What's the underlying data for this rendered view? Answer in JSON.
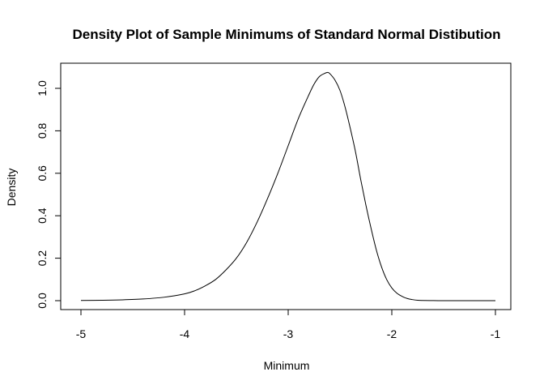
{
  "chart_data": {
    "type": "line",
    "title": "Density Plot of Sample Minimums of Standard Normal Distibution",
    "xlabel": "Minimum",
    "ylabel": "Density",
    "xlim": [
      -5,
      -1
    ],
    "ylim": [
      0,
      1.08
    ],
    "x_ticks": [
      -5,
      -4,
      -3,
      -2,
      -1
    ],
    "x_tick_labels": [
      "-5",
      "-4",
      "-3",
      "-2",
      "-1"
    ],
    "y_ticks": [
      0.0,
      0.2,
      0.4,
      0.6,
      0.8,
      1.0
    ],
    "y_tick_labels": [
      "0.0",
      "0.2",
      "0.4",
      "0.6",
      "0.8",
      "1.0"
    ],
    "grid": false,
    "legend": "none",
    "line_color": "#000000",
    "series": [
      {
        "x": [
          -5.0,
          -4.8,
          -4.6,
          -4.4,
          -4.2,
          -4.0,
          -3.9,
          -3.8,
          -3.7,
          -3.6,
          -3.5,
          -3.4,
          -3.3,
          -3.2,
          -3.1,
          -3.0,
          -2.9,
          -2.8,
          -2.75,
          -2.7,
          -2.65,
          -2.62,
          -2.6,
          -2.55,
          -2.5,
          -2.45,
          -2.4,
          -2.35,
          -2.3,
          -2.25,
          -2.2,
          -2.15,
          -2.1,
          -2.05,
          -2.0,
          -1.95,
          -1.9,
          -1.85,
          -1.8,
          -1.75,
          -1.7,
          -1.6,
          -1.5,
          -1.4,
          -1.2,
          -1.0
        ],
        "y": [
          0.001,
          0.002,
          0.004,
          0.008,
          0.016,
          0.032,
          0.047,
          0.07,
          0.1,
          0.145,
          0.2,
          0.275,
          0.37,
          0.48,
          0.6,
          0.73,
          0.86,
          0.97,
          1.02,
          1.055,
          1.07,
          1.075,
          1.07,
          1.04,
          0.99,
          0.91,
          0.81,
          0.7,
          0.57,
          0.45,
          0.34,
          0.24,
          0.16,
          0.1,
          0.06,
          0.035,
          0.02,
          0.01,
          0.005,
          0.002,
          0.001,
          0.0003,
          0.0001,
          0.0,
          0.0,
          0.0
        ]
      }
    ]
  }
}
